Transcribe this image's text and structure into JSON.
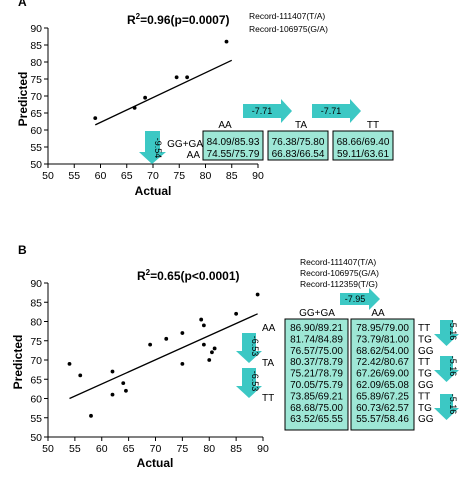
{
  "colors": {
    "accent": "#3cc8c4",
    "table_fill": "#9ee7d6",
    "dark": "#222222"
  },
  "chart_data": [
    {
      "type": "scatter",
      "panel_letter": "A",
      "xlabel": "Actual",
      "ylabel": "Predicted",
      "xlim": [
        50,
        90
      ],
      "ylim": [
        50,
        90
      ],
      "x_ticks": [
        "50",
        "55",
        "60",
        "65",
        "70",
        "75",
        "80",
        "85",
        "90"
      ],
      "y_ticks": [
        "50",
        "55",
        "60",
        "65",
        "70",
        "75",
        "80",
        "85",
        "90"
      ],
      "points": [
        [
          59,
          63.5
        ],
        [
          66.5,
          66.5
        ],
        [
          68.5,
          69.5
        ],
        [
          74.5,
          75.5
        ],
        [
          76.5,
          75.5
        ],
        [
          84,
          86
        ]
      ],
      "regression": [
        [
          59,
          61.5
        ],
        [
          85,
          80.5
        ]
      ],
      "title_prefix": "R",
      "title_sup": "2",
      "title_rest": "=0.96(p=0.0007)",
      "records": [
        "Record-111407(T/A)",
        "Record-106975(G/A)"
      ],
      "col_headers": [
        "AA",
        "TA",
        "TT"
      ],
      "row_labels": [
        "GG+GA",
        "AA"
      ],
      "table": [
        [
          "84.09/85.93",
          "74.55/75.79"
        ],
        [
          "76.38/75.80",
          "66.83/66.54"
        ],
        [
          "68.66/69.40",
          "59.11/63.61"
        ]
      ],
      "arrows": {
        "h1": "-7.71",
        "h2": "-7.71",
        "v1": "-9.54"
      }
    },
    {
      "type": "scatter",
      "panel_letter": "B",
      "xlabel": "Actual",
      "ylabel": "Predicted",
      "xlim": [
        50,
        90
      ],
      "ylim": [
        50,
        90
      ],
      "x_ticks": [
        "50",
        "55",
        "60",
        "65",
        "70",
        "75",
        "80",
        "85",
        "90"
      ],
      "y_ticks": [
        "50",
        "55",
        "60",
        "65",
        "70",
        "75",
        "80",
        "85",
        "90"
      ],
      "points": [
        [
          54,
          69
        ],
        [
          56,
          66
        ],
        [
          58,
          55.5
        ],
        [
          62,
          67
        ],
        [
          62,
          61
        ],
        [
          64,
          64
        ],
        [
          64.5,
          62
        ],
        [
          69,
          74
        ],
        [
          72,
          75.5
        ],
        [
          75,
          69
        ],
        [
          75,
          77
        ],
        [
          78.5,
          80.5
        ],
        [
          79,
          79
        ],
        [
          79,
          74
        ],
        [
          80,
          70
        ],
        [
          81,
          73
        ],
        [
          80.5,
          72
        ],
        [
          85,
          82
        ],
        [
          89,
          87
        ]
      ],
      "regression": [
        [
          54,
          60
        ],
        [
          89,
          82
        ]
      ],
      "title_prefix": "R",
      "title_sup": "2",
      "title_rest": "=0.65(p<0.0001)",
      "records": [
        "Record-111407(T/A)",
        "Record-106975(G/A)",
        "Record-112359(T/G)"
      ],
      "col_headers": [
        "GG+GA",
        "AA"
      ],
      "row_left": [
        "AA",
        "TA",
        "TT"
      ],
      "row_right": [
        "TT",
        "TG",
        "GG",
        "TT",
        "TG",
        "GG",
        "TT",
        "TG",
        "GG"
      ],
      "table": [
        [
          "86.90/89.21",
          "81.74/84.89",
          "76.57/75.00",
          "80.37/78.79",
          "75.21/78.79",
          "70.05/75.79",
          "73.85/69.21",
          "68.68/75.00",
          "63.52/65.55"
        ],
        [
          "78.95/79.00",
          "73.79/81.00",
          "68.62/54.00",
          "72.42/80.67",
          "67.26/69.00",
          "62.09/65.08",
          "65.89/67.25",
          "60.73/62.57",
          "55.57/58.46"
        ]
      ],
      "arrows": {
        "h1": "-7.95",
        "v1": "-6.53",
        "v2": "-6.53",
        "r1": "-5.16",
        "r2": "-5.16",
        "r3": "-5.16"
      }
    }
  ]
}
